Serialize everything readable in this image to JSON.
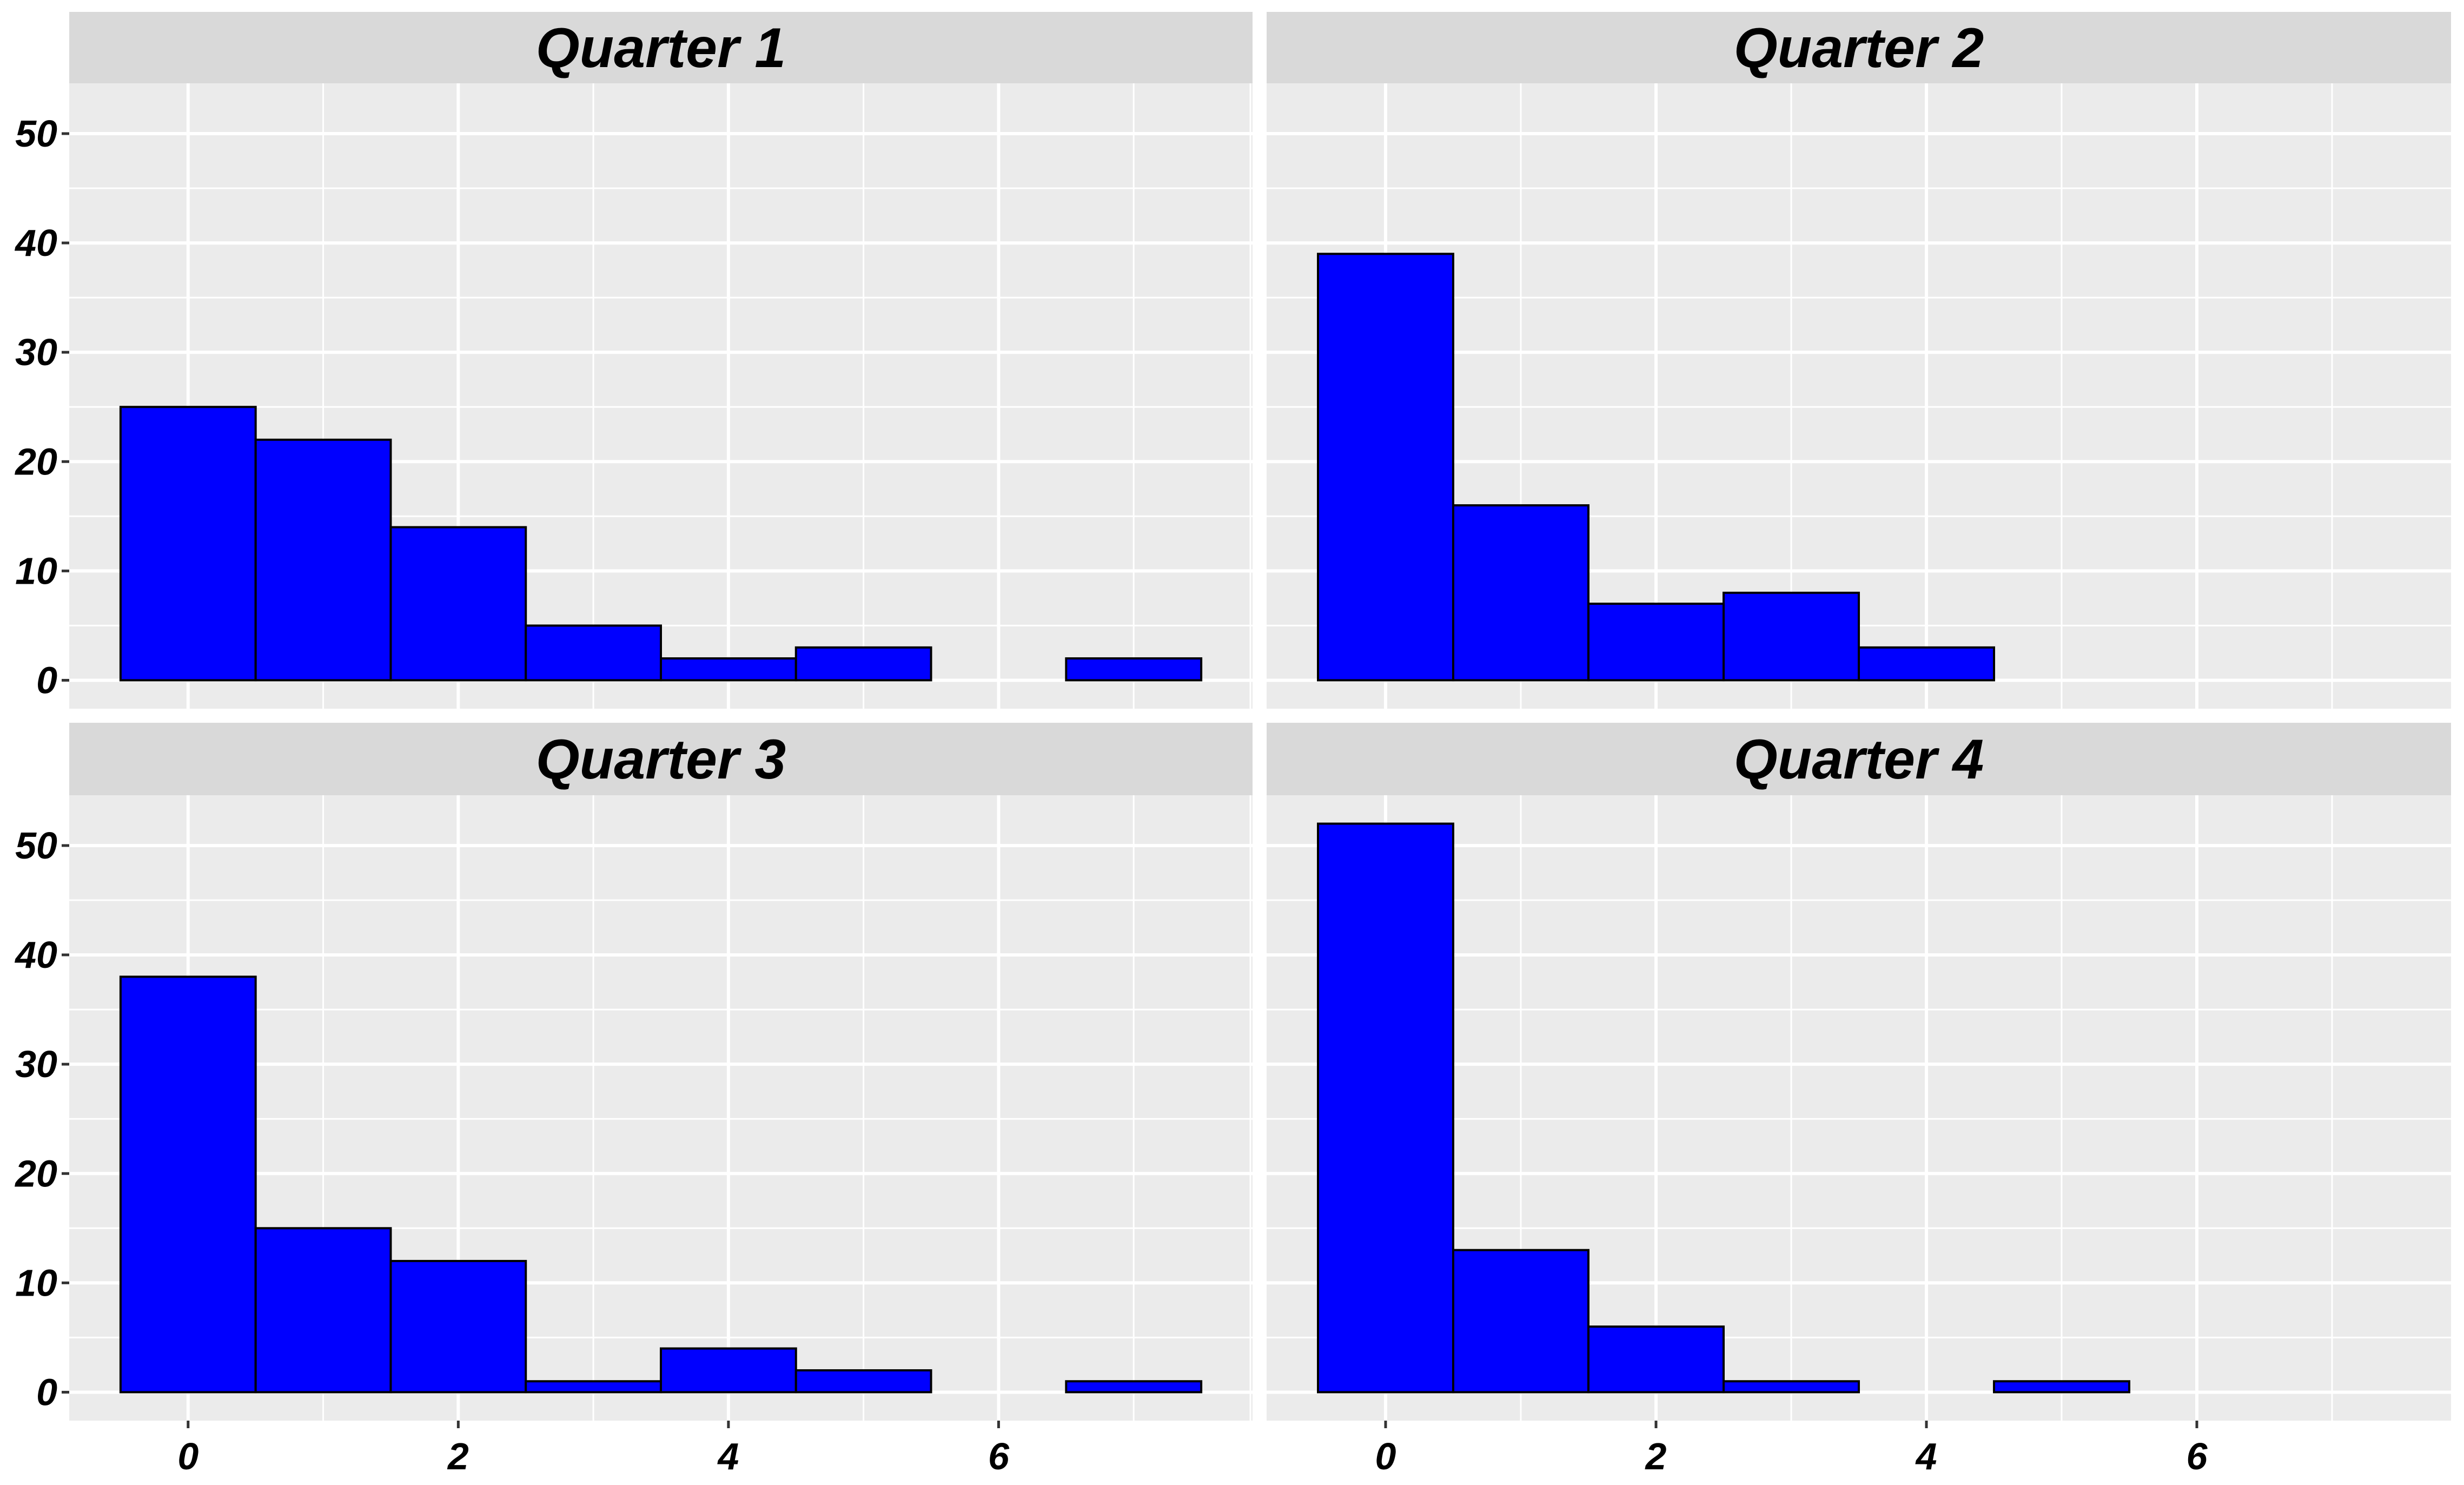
{
  "chart_data": {
    "type": "bar",
    "layout": "2x2 facet grid, shared axes",
    "x_ticks": [
      0,
      2,
      4,
      6
    ],
    "y_ticks": [
      0,
      10,
      20,
      30,
      40,
      50
    ],
    "xlim": [
      -0.88,
      7.88
    ],
    "ylim": [
      -2.6,
      54.6
    ],
    "bin_width": 1,
    "grid": true,
    "fill_color": "#0000FF",
    "edge_color": "#000000",
    "panel_background": "#EBEBEB",
    "strip_background": "#D9D9D9",
    "panels": [
      {
        "title": "Quarter 1",
        "bin_centers": [
          0,
          1,
          2,
          3,
          4,
          5,
          6,
          7
        ],
        "counts": [
          25,
          22,
          14,
          5,
          2,
          3,
          0,
          2
        ]
      },
      {
        "title": "Quarter 2",
        "bin_centers": [
          0,
          1,
          2,
          3,
          4,
          5,
          6,
          7
        ],
        "counts": [
          39,
          16,
          7,
          8,
          3,
          0,
          0,
          0
        ]
      },
      {
        "title": "Quarter 3",
        "bin_centers": [
          0,
          1,
          2,
          3,
          4,
          5,
          6,
          7
        ],
        "counts": [
          38,
          15,
          12,
          1,
          4,
          2,
          0,
          1
        ]
      },
      {
        "title": "Quarter 4",
        "bin_centers": [
          0,
          1,
          2,
          3,
          4,
          5,
          6,
          7
        ],
        "counts": [
          52,
          13,
          6,
          1,
          0,
          1,
          0,
          0
        ]
      }
    ]
  }
}
